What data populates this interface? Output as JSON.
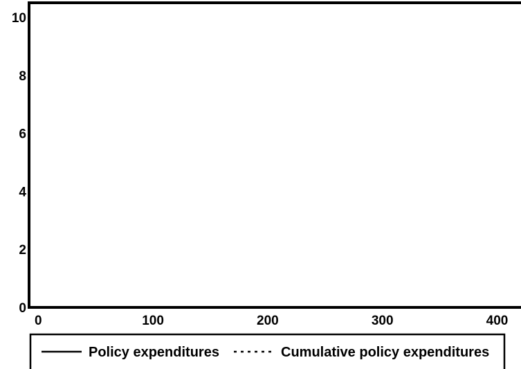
{
  "chart_data": {
    "type": "line",
    "title": "",
    "xlabel": "",
    "ylabel": "",
    "xlim": [
      -8,
      422
    ],
    "ylim": [
      0,
      10.5
    ],
    "x_ticks": [
      0,
      100,
      200,
      300,
      400
    ],
    "y_ticks": [
      0,
      2,
      4,
      6,
      8,
      10
    ],
    "x_tick_labels": [
      "0",
      "100",
      "200",
      "300",
      "400"
    ],
    "y_tick_labels": [
      "0",
      "2",
      "4",
      "6",
      "8",
      "10"
    ],
    "grid": false,
    "legend_position": "bottom",
    "series": [
      {
        "name": "Policy expenditures",
        "line_style": "solid",
        "color": "#000000",
        "x": [],
        "y": []
      },
      {
        "name": "Cumulative policy expenditures",
        "line_style": "dotted",
        "color": "#000000",
        "x": [],
        "y": []
      }
    ]
  }
}
